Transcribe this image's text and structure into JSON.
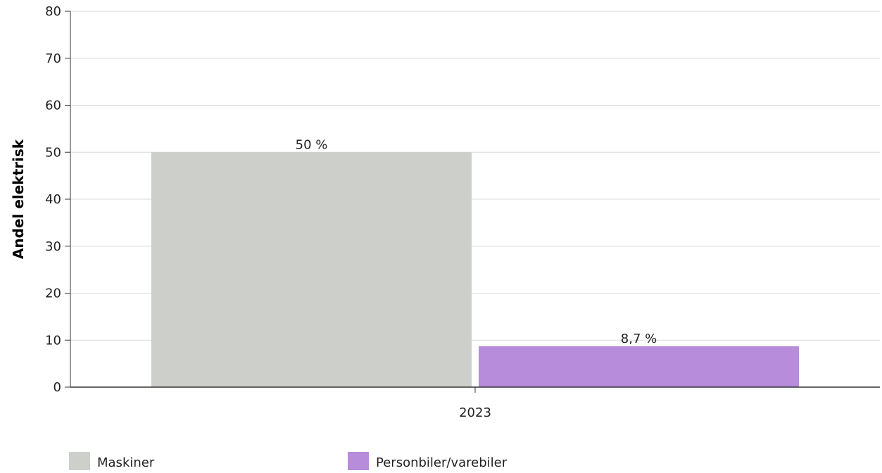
{
  "chart_data": {
    "type": "bar",
    "title": "",
    "xlabel": "",
    "ylabel": "Andel elektrisk",
    "categories": [
      "2023"
    ],
    "series": [
      {
        "name": "Maskiner",
        "values": [
          50
        ],
        "labels": [
          "50 %"
        ],
        "color": "#cccfca"
      },
      {
        "name": "Personbiler/varebiler",
        "values": [
          8.7
        ],
        "labels": [
          "8,7 %"
        ],
        "color": "#b68cdb"
      }
    ],
    "ylim": [
      0,
      80
    ],
    "yticks": [
      0,
      10,
      20,
      30,
      40,
      50,
      60,
      70,
      80
    ],
    "grid": true,
    "legend_position": "bottom-left"
  }
}
